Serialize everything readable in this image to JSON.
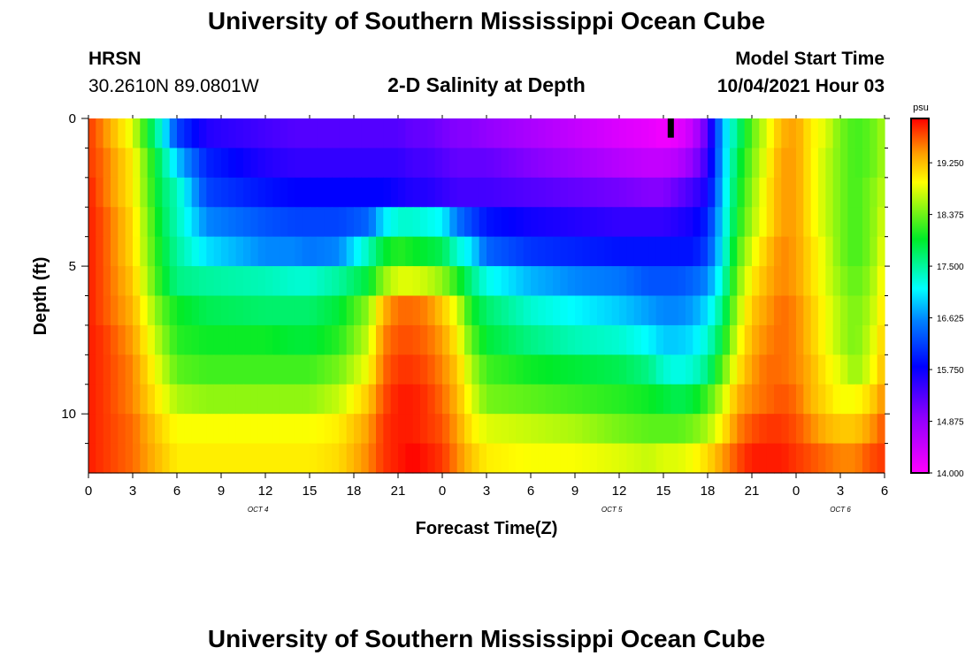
{
  "page": {
    "title": "University of Southern Mississippi Ocean Cube",
    "footer_title": "University of Southern Mississippi Ocean Cube",
    "station": "HRSN",
    "coords": "30.2610N  89.0801W",
    "plot_title": "2-D Salinity at Depth",
    "start_label": "Model Start Time",
    "start_value": "10/04/2021 Hour 03"
  },
  "chart_data": {
    "type": "heatmap",
    "title": "2-D Salinity at Depth",
    "xlabel": "Forecast Time(Z)",
    "ylabel": "Depth (ft)",
    "units": "psu",
    "xlim": [
      0,
      54
    ],
    "ylim": [
      0,
      12.0
    ],
    "x_tick_labels": [
      "0",
      "3",
      "6",
      "9",
      "12",
      "15",
      "18",
      "21",
      "0",
      "3",
      "6",
      "9",
      "12",
      "15",
      "18",
      "21",
      "0",
      "3",
      "6"
    ],
    "date_labels": [
      {
        "text": "OCT 4",
        "hour": 11.5
      },
      {
        "text": "OCT 5",
        "hour": 35.5
      },
      {
        "text": "OCT 6",
        "hour": 51
      }
    ],
    "y_ticks": [
      0,
      5,
      10
    ],
    "y_minor_ticks": [
      1,
      2,
      3,
      4,
      6,
      7,
      8,
      9,
      11
    ],
    "colorbar": {
      "min": 14.0,
      "max": 20.0,
      "tick_values": [
        14.0,
        14.875,
        15.75,
        16.625,
        17.5,
        18.375,
        19.25
      ],
      "tick_labels": [
        "14.000",
        "14.875",
        "15.750",
        "16.625",
        "17.500",
        "18.375",
        "19.250"
      ]
    },
    "marker": {
      "hour": 39.5,
      "depth": 0.35
    },
    "layer_depths": [
      0.5,
      1.5,
      2.5,
      3.5,
      4.5,
      5.5,
      6.5,
      7.5,
      8.5,
      9.5,
      10.5,
      11.5
    ],
    "time_keys": [
      0,
      1,
      3,
      5,
      6,
      8,
      12,
      14,
      15,
      17,
      19,
      20,
      21,
      22,
      23,
      24,
      25,
      26,
      27,
      30,
      33,
      36,
      38,
      39,
      40,
      41,
      42,
      43,
      44,
      45,
      46,
      47,
      48,
      49,
      50,
      51,
      52,
      53,
      54
    ],
    "salinity_psu": [
      [
        19.8,
        19.5,
        18.8,
        17.2,
        16.2,
        15.6,
        15.4,
        15.3,
        15.3,
        15.3,
        15.3,
        15.3,
        15.3,
        15.2,
        15.2,
        15.1,
        15.0,
        15.0,
        14.9,
        14.7,
        14.5,
        14.3,
        14.2,
        14.1,
        14.2,
        14.5,
        15.3,
        16.8,
        17.6,
        18.3,
        18.8,
        19.3,
        19.4,
        19.0,
        18.8,
        18.4,
        18.2,
        18.3,
        18.6
      ],
      [
        19.8,
        19.6,
        19.0,
        17.6,
        16.9,
        16.0,
        15.6,
        15.5,
        15.5,
        15.5,
        15.5,
        15.5,
        15.5,
        15.4,
        15.4,
        15.3,
        15.2,
        15.2,
        15.2,
        15.0,
        14.8,
        14.6,
        14.5,
        14.5,
        14.6,
        14.9,
        15.5,
        16.8,
        17.8,
        18.4,
        18.9,
        19.4,
        19.4,
        19.0,
        18.7,
        18.4,
        18.2,
        18.3,
        18.6
      ],
      [
        19.9,
        19.6,
        19.0,
        17.7,
        17.4,
        16.2,
        15.9,
        15.8,
        15.8,
        15.8,
        15.8,
        15.8,
        15.7,
        15.6,
        15.6,
        15.5,
        15.4,
        15.4,
        15.4,
        15.3,
        15.2,
        15.1,
        15.0,
        15.0,
        15.2,
        15.4,
        15.7,
        16.9,
        17.9,
        18.5,
        19.0,
        19.4,
        19.4,
        19.0,
        18.7,
        18.4,
        18.2,
        18.4,
        18.7
      ],
      [
        19.9,
        19.7,
        19.1,
        17.8,
        17.4,
        16.6,
        16.3,
        16.2,
        16.2,
        16.2,
        16.4,
        17.0,
        17.3,
        17.3,
        17.2,
        17.1,
        16.5,
        16.2,
        15.9,
        15.7,
        15.6,
        15.5,
        15.5,
        15.5,
        15.6,
        15.7,
        16.0,
        17.0,
        18.0,
        18.6,
        19.0,
        19.4,
        19.4,
        19.0,
        18.7,
        18.4,
        18.2,
        18.4,
        18.8
      ],
      [
        19.9,
        19.7,
        19.1,
        17.9,
        17.5,
        17.0,
        16.6,
        16.6,
        16.5,
        16.6,
        17.4,
        17.9,
        18.1,
        18.0,
        17.9,
        17.8,
        17.3,
        17.0,
        16.4,
        16.1,
        16.0,
        15.9,
        15.9,
        15.9,
        15.9,
        15.9,
        16.2,
        17.1,
        18.2,
        18.8,
        19.2,
        19.5,
        19.4,
        19.1,
        18.8,
        18.4,
        18.2,
        18.4,
        18.9
      ],
      [
        19.9,
        19.7,
        19.2,
        18.0,
        17.6,
        17.5,
        17.4,
        17.3,
        17.3,
        17.5,
        17.9,
        18.5,
        18.8,
        18.8,
        18.7,
        18.5,
        18.1,
        17.6,
        17.2,
        16.8,
        16.6,
        16.5,
        16.3,
        16.3,
        16.3,
        16.4,
        16.6,
        17.3,
        18.4,
        19.0,
        19.3,
        19.5,
        19.4,
        19.1,
        18.8,
        18.5,
        18.3,
        18.5,
        19.0
      ],
      [
        19.9,
        19.7,
        19.3,
        18.3,
        18.0,
        17.8,
        17.7,
        17.7,
        17.7,
        17.9,
        18.5,
        19.3,
        19.6,
        19.6,
        19.5,
        19.2,
        18.8,
        18.0,
        17.7,
        17.3,
        17.1,
        16.9,
        16.7,
        16.6,
        16.6,
        16.7,
        17.0,
        17.6,
        18.6,
        19.2,
        19.4,
        19.6,
        19.5,
        19.2,
        18.9,
        18.6,
        18.4,
        18.6,
        19.1
      ],
      [
        19.9,
        19.8,
        19.4,
        18.5,
        18.1,
        18.0,
        18.0,
        17.9,
        17.9,
        18.1,
        18.7,
        19.5,
        19.7,
        19.7,
        19.6,
        19.4,
        19.0,
        18.3,
        17.9,
        17.6,
        17.4,
        17.3,
        17.1,
        16.9,
        16.9,
        17.0,
        17.3,
        17.9,
        18.8,
        19.3,
        19.5,
        19.6,
        19.5,
        19.2,
        18.9,
        18.6,
        18.4,
        18.7,
        19.2
      ],
      [
        19.9,
        19.8,
        19.5,
        18.7,
        18.3,
        18.2,
        18.2,
        18.2,
        18.2,
        18.4,
        18.9,
        19.6,
        19.8,
        19.8,
        19.7,
        19.5,
        19.2,
        18.6,
        18.2,
        18.0,
        17.9,
        17.8,
        17.6,
        17.3,
        17.2,
        17.3,
        17.6,
        18.3,
        19.0,
        19.4,
        19.6,
        19.6,
        19.5,
        19.3,
        19.0,
        18.8,
        18.5,
        18.8,
        19.3
      ],
      [
        19.9,
        19.8,
        19.5,
        18.9,
        18.6,
        18.5,
        18.5,
        18.5,
        18.5,
        18.7,
        19.2,
        19.7,
        19.9,
        19.9,
        19.8,
        19.6,
        19.3,
        18.8,
        18.4,
        18.3,
        18.2,
        18.1,
        18.0,
        17.9,
        17.8,
        17.9,
        18.2,
        18.7,
        19.3,
        19.5,
        19.6,
        19.7,
        19.6,
        19.3,
        19.1,
        18.9,
        18.9,
        19.1,
        19.5
      ],
      [
        19.9,
        19.8,
        19.6,
        19.1,
        18.9,
        18.9,
        18.9,
        18.9,
        18.9,
        19.0,
        19.4,
        19.8,
        19.9,
        19.9,
        19.8,
        19.7,
        19.4,
        19.0,
        18.8,
        18.7,
        18.6,
        18.4,
        18.3,
        18.3,
        18.3,
        18.4,
        18.6,
        19.0,
        19.5,
        19.7,
        19.8,
        19.8,
        19.7,
        19.5,
        19.3,
        19.2,
        19.2,
        19.4,
        19.7
      ],
      [
        19.9,
        19.8,
        19.6,
        19.2,
        19.0,
        19.0,
        19.0,
        19.0,
        19.0,
        19.1,
        19.5,
        19.8,
        19.9,
        20.0,
        19.9,
        19.8,
        19.5,
        19.2,
        19.0,
        18.9,
        18.9,
        18.8,
        18.7,
        18.8,
        18.8,
        18.9,
        19.1,
        19.4,
        19.7,
        19.9,
        19.9,
        19.9,
        19.8,
        19.7,
        19.6,
        19.5,
        19.5,
        19.7,
        19.8
      ]
    ]
  }
}
